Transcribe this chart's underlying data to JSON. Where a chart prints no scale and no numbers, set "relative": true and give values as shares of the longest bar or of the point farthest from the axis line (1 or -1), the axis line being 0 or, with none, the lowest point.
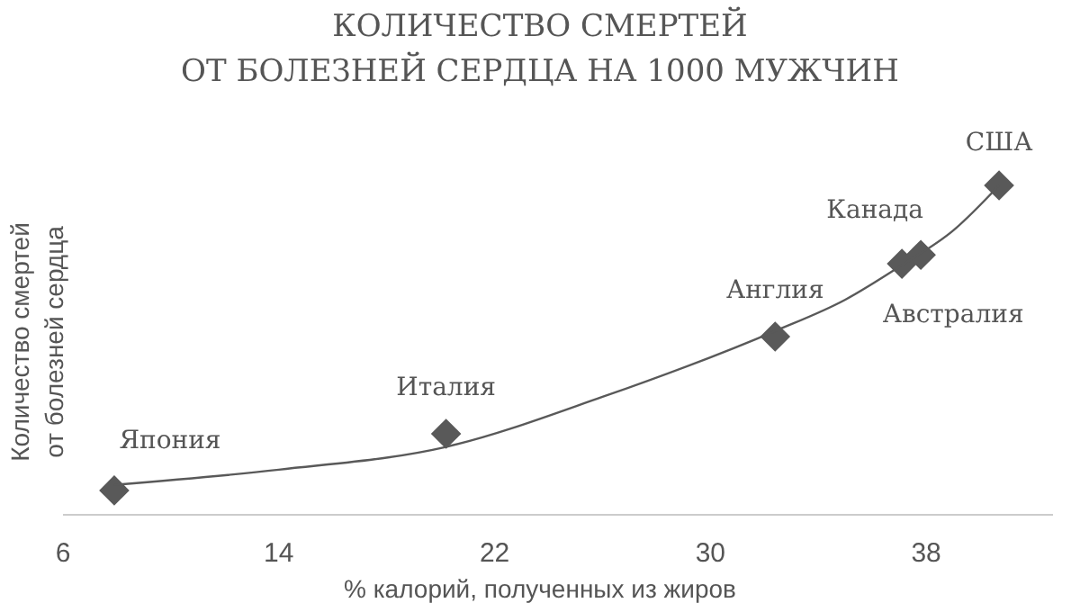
{
  "chart_data": {
    "type": "scatter",
    "relative": true,
    "title": "КОЛИЧЕСТВО СМЕРТЕЙ\nОТ БОЛЕЗНЕЙ СЕРДЦА НА 1000 МУЖЧИН",
    "xlabel": "% калорий, полученных из жиров",
    "ylabel": "Количество смертей\nот болезней сердца",
    "xlim": [
      6,
      42.7
    ],
    "xticks": [
      6,
      14,
      22,
      30,
      38
    ],
    "marker": "diamond",
    "series": [
      {
        "color": "#595959",
        "x": [
          7.9,
          20.2,
          32.4,
          37.1,
          37.8,
          40.7
        ],
        "values": [
          0.074,
          0.246,
          0.541,
          0.762,
          0.789,
          1
        ]
      },
      {
        "type": "line",
        "color": "#595959",
        "marker": "none",
        "x": [
          7.9,
          14,
          20.2,
          26,
          32.4,
          35,
          37.1,
          39,
          40.7
        ],
        "values": [
          0.091,
          0.137,
          0.206,
          0.358,
          0.558,
          0.653,
          0.758,
          0.863,
          1
        ]
      }
    ],
    "annotations": [
      {
        "text": "Япония",
        "x": 7.9,
        "y": 0.074
      },
      {
        "text": "Италия",
        "x": 20.2,
        "y": 0.246
      },
      {
        "text": "Англия",
        "x": 32.4,
        "y": 0.541
      },
      {
        "text": "Канада",
        "x": 37.1,
        "y": 0.762
      },
      {
        "text": "Австралия",
        "x": 37.8,
        "y": 0.789
      },
      {
        "text": "США",
        "x": 40.7,
        "y": 1
      }
    ]
  }
}
